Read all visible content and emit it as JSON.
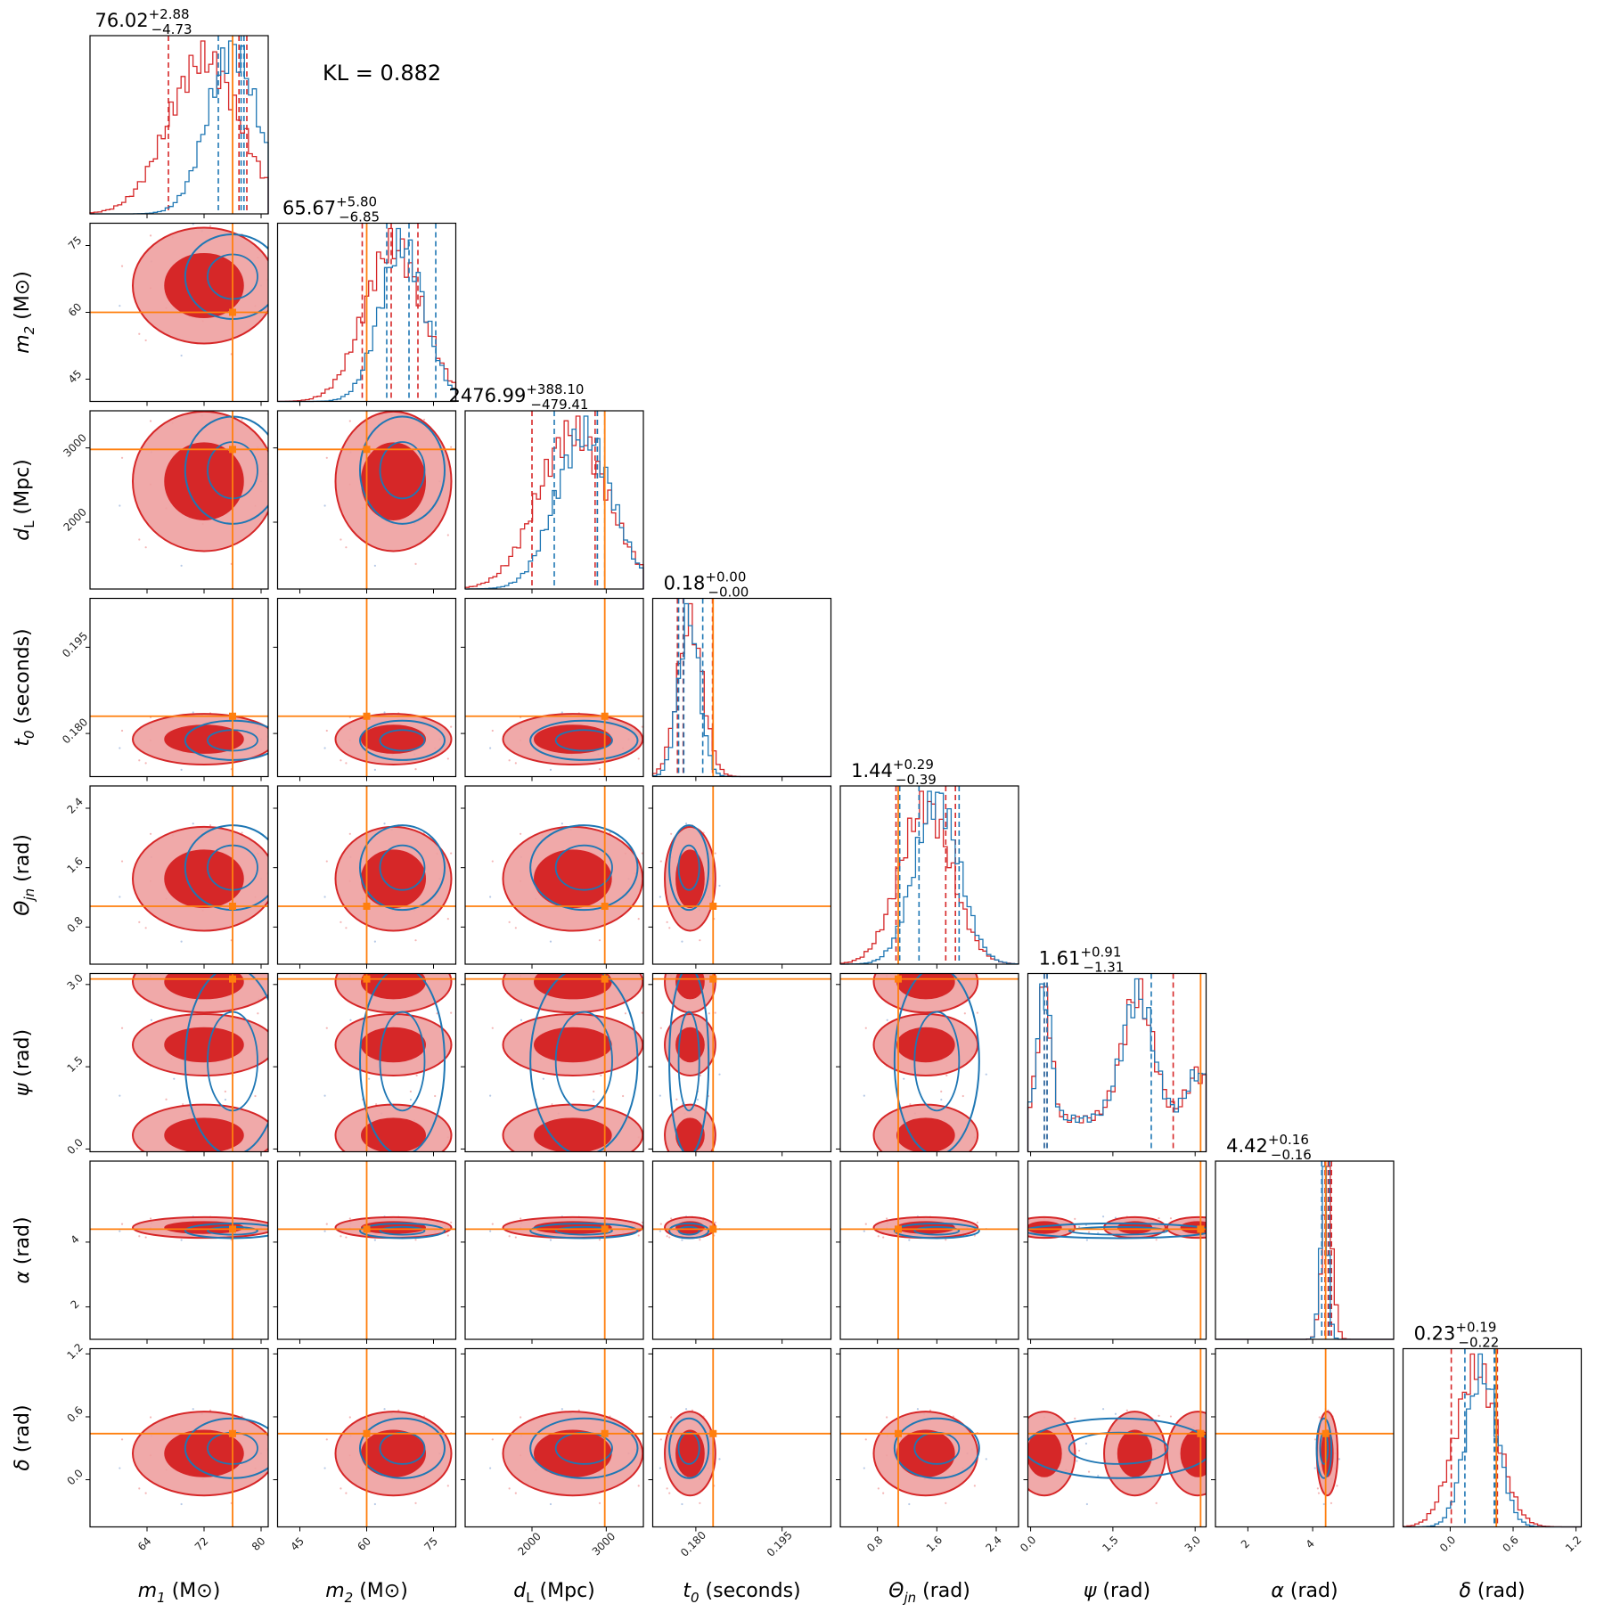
{
  "kl_text": "KL = 0.882",
  "colors": {
    "red": "#d62728",
    "red_light": "#eea0a0",
    "blue": "#1f77b4",
    "truth": "#ff7f0e"
  },
  "chart_data": {
    "type": "corner",
    "series": [
      {
        "name": "",
        "color": "#d62728"
      },
      {
        "name": "",
        "color": "#1f77b4"
      }
    ],
    "parameters": [
      {
        "key": "m1",
        "label_base": "m",
        "label_sub": "1",
        "label_unit": "(M⊙)",
        "title_value": "76.02",
        "title_plus": "+2.88",
        "title_minus": "−4.73",
        "range": [
          56,
          81
        ],
        "ticks": [
          64,
          72,
          80
        ],
        "truth": 76.0,
        "red_mean": 72,
        "red_sd": 5,
        "blue_mean": 76,
        "blue_sd": 3.5,
        "blue_q": [
          74.0,
          77.2,
          77.6
        ],
        "red_q": [
          67.0,
          76.9,
          78.0
        ]
      },
      {
        "key": "m2",
        "label_base": "m",
        "label_sub": "2",
        "label_unit": "(M⊙)",
        "title_value": "65.67",
        "title_plus": "+5.80",
        "title_minus": "−6.85",
        "range": [
          40,
          80
        ],
        "ticks": [
          45,
          60,
          75
        ],
        "truth": 60.0,
        "red_mean": 66,
        "red_sd": 6.5,
        "blue_mean": 68,
        "blue_sd": 5,
        "blue_q": [
          64.5,
          69.5,
          75.5
        ],
        "red_q": [
          59.0,
          65.5,
          71.5
        ]
      },
      {
        "key": "dL",
        "label_base": "d",
        "label_sub": "L",
        "label_unit": "(Mpc)",
        "title_value": "2476.99",
        "title_plus": "+388.10",
        "title_minus": "−479.41",
        "range": [
          1100,
          3500
        ],
        "ticks": [
          2000,
          3000
        ],
        "truth": 2980,
        "red_mean": 2550,
        "red_sd": 470,
        "blue_mean": 2700,
        "blue_sd": 380,
        "blue_q": [
          2300,
          2880,
          2980
        ],
        "red_q": [
          2000,
          2850,
          2880
        ]
      },
      {
        "key": "t0",
        "label_base": "t",
        "label_sub": "0",
        "label_unit": "(seconds)",
        "title_value": "0.18",
        "title_plus": "+0.00",
        "title_minus": "−0.00",
        "range": [
          0.1725,
          0.2035
        ],
        "ticks": [
          0.18,
          0.195
        ],
        "tick_labels": [
          "0.180",
          "0.195"
        ],
        "truth": 0.183,
        "red_mean": 0.179,
        "red_sd": 0.0022,
        "blue_mean": 0.1788,
        "blue_sd": 0.0018,
        "blue_q": [
          0.177,
          0.1779,
          0.1812
        ],
        "red_q": [
          0.1768,
          0.1778,
          0.1829
        ]
      },
      {
        "key": "theta_jn",
        "label_base": "Θ",
        "label_sub": "jn",
        "label_unit": "(rad)",
        "title_value": "1.44",
        "title_plus": "+0.29",
        "title_minus": "−0.39",
        "range": [
          0.3,
          2.7
        ],
        "ticks": [
          0.8,
          1.6,
          2.4
        ],
        "truth": 1.08,
        "red_mean": 1.45,
        "red_sd": 0.35,
        "blue_mean": 1.6,
        "blue_sd": 0.3,
        "blue_q": [
          1.36,
          1.9,
          1.1
        ],
        "red_q": [
          1.05,
          1.72,
          1.85
        ]
      },
      {
        "key": "psi",
        "label_base": "ψ",
        "label_sub": "",
        "label_unit": "(rad)",
        "title_value": "1.61",
        "title_plus": "+0.91",
        "title_minus": "−1.31",
        "range": [
          -0.05,
          3.2
        ],
        "ticks": [
          0.0,
          1.5,
          3.0
        ],
        "tick_labels": [
          "0.0",
          "1.5",
          "3.0"
        ],
        "truth": 3.1,
        "red_mean": 1.6,
        "red_sd": 0.9,
        "blue_mean": 1.6,
        "blue_sd": 0.9,
        "blue_q": [
          0.3,
          2.2,
          0.25
        ],
        "red_q": [
          0.3,
          2.6,
          0.25
        ]
      },
      {
        "key": "alpha",
        "label_base": "α",
        "label_sub": "",
        "label_unit": "(rad)",
        "title_value": "4.42",
        "title_plus": "+0.16",
        "title_minus": "−0.16",
        "range": [
          1.0,
          6.5
        ],
        "ticks": [
          2,
          4
        ],
        "truth": 4.4,
        "red_mean": 4.45,
        "red_sd": 0.16,
        "blue_mean": 4.35,
        "blue_sd": 0.12,
        "blue_q": [
          4.28,
          4.4,
          4.52
        ],
        "red_q": [
          4.38,
          4.48,
          4.58
        ]
      },
      {
        "key": "delta",
        "label_base": "δ",
        "label_sub": "",
        "label_unit": "(rad)",
        "title_value": "0.23",
        "title_plus": "+0.19",
        "title_minus": "−0.22",
        "range": [
          -0.45,
          1.25
        ],
        "ticks": [
          0.0,
          0.6,
          1.2
        ],
        "tick_labels": [
          "0.0",
          "0.6",
          "1.2"
        ],
        "truth": 0.44,
        "red_mean": 0.25,
        "red_sd": 0.2,
        "blue_mean": 0.3,
        "blue_sd": 0.15,
        "blue_q": [
          0.14,
          0.42,
          0.43
        ],
        "red_q": [
          0.01,
          0.43,
          0.45
        ]
      }
    ]
  }
}
